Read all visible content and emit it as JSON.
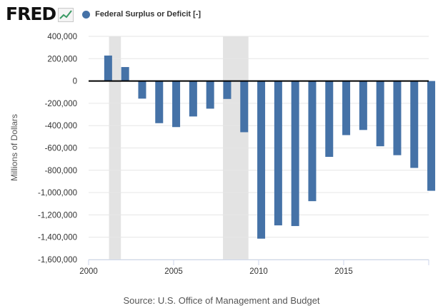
{
  "header": {
    "logo_text": "FRED",
    "logo_icon": "line-chart-icon",
    "legend_label": "Federal Surplus or Deficit [-]"
  },
  "source": "Source: U.S. Office of Management and Budget",
  "colors": {
    "bar": "#4572a7",
    "recession": "#e3e3e3",
    "grid": "#e6e6e6",
    "zero_line": "#000000",
    "logo_accent": "#3a9a64"
  },
  "chart_data": {
    "type": "bar",
    "title": "",
    "xlabel": "",
    "ylabel": "Millions of Dollars",
    "legend": "Federal Surplus or Deficit [-]",
    "legend_position": "top",
    "ylim": [
      -1600000,
      400000
    ],
    "yticks": [
      400000,
      200000,
      0,
      -200000,
      -400000,
      -600000,
      -800000,
      -1000000,
      -1200000,
      -1400000,
      -1600000
    ],
    "ytick_labels": [
      "400,000",
      "200,000",
      "0",
      "-200,000",
      "-400,000",
      "-600,000",
      "-800,000",
      "-1,000,000",
      "-1,200,000",
      "-1,400,000",
      "-1,600,000"
    ],
    "xlim": [
      2000,
      2020
    ],
    "xticks": [
      2000,
      2005,
      2010,
      2015
    ],
    "xtick_labels": [
      "2000",
      "2005",
      "2010",
      "2015"
    ],
    "grid": true,
    "recessions": [
      [
        2001.2,
        2001.9
      ],
      [
        2007.9,
        2009.4
      ]
    ],
    "categories": [
      2001,
      2002,
      2003,
      2004,
      2005,
      2006,
      2007,
      2008,
      2009,
      2010,
      2011,
      2012,
      2013,
      2014,
      2015,
      2016,
      2017,
      2018,
      2019,
      2020
    ],
    "series": [
      {
        "name": "Federal Surplus or Deficit [-]",
        "values": [
          228000,
          125000,
          -158000,
          -378000,
          -413000,
          -318000,
          -248000,
          -161000,
          -459000,
          -1413000,
          -1294000,
          -1300000,
          -1077000,
          -680000,
          -485000,
          -439000,
          -585000,
          -665000,
          -779000,
          -984000
        ]
      }
    ]
  }
}
